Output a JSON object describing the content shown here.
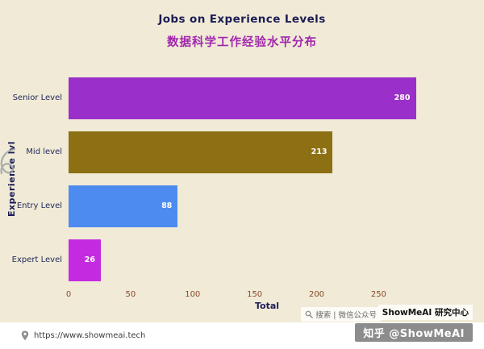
{
  "chart_data": {
    "type": "bar",
    "orientation": "horizontal",
    "title": "Jobs on Experience Levels",
    "subtitle": "数据科学工作经验水平分布",
    "categories": [
      "Senior Level",
      "Mid level",
      "Entry Level",
      "Expert Level"
    ],
    "values": [
      280,
      213,
      88,
      26
    ],
    "bar_colors": [
      "#9a30c9",
      "#8d7013",
      "#4d8bf0",
      "#c42be0"
    ],
    "xlabel": "Total",
    "ylabel": "Experience lvl",
    "xticks": [
      0,
      50,
      100,
      150,
      200,
      250
    ],
    "xlim": [
      0,
      320
    ],
    "grid": false,
    "legend": false,
    "background_color": "#f0ead6",
    "title_color": "#1c1c55",
    "subtitle_color": "#a127ad",
    "tick_color": "#8a4a2b"
  },
  "footer": {
    "url": "https://www.showmeai.tech"
  },
  "watermark": {
    "search_prefix": "搜索 | 微信公众号",
    "brand": "ShowMeAI 研究中心",
    "zhihu": "知乎 @ShowMeAI"
  }
}
